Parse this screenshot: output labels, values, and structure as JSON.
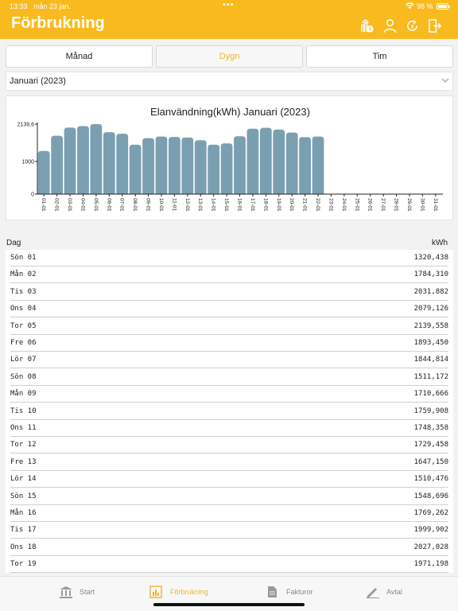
{
  "status_bar": {
    "time": "13:33",
    "date": "mån 23 jan.",
    "dots": "•••",
    "battery": "98 %",
    "battery_level": 0.98
  },
  "header": {
    "title": "Förbrukning",
    "icons": [
      "upload-document-icon",
      "user-icon",
      "refresh-icon",
      "logout-icon"
    ]
  },
  "tabs": [
    {
      "label": "Månad",
      "active": false
    },
    {
      "label": "Dygn",
      "active": true
    },
    {
      "label": "Tim",
      "active": false
    }
  ],
  "month_select": {
    "value": "Januari (2023)"
  },
  "chart_data": {
    "type": "bar",
    "title": "Elanvändning(kWh) Januari (2023)",
    "categories": [
      "01-01",
      "02-01",
      "03-01",
      "04-01",
      "05-01",
      "06-01",
      "07-01",
      "08-01",
      "09-01",
      "10-01",
      "11-01",
      "12-01",
      "13-01",
      "14-01",
      "15-01",
      "16-01",
      "17-01",
      "18-01",
      "19-01",
      "20-01",
      "21-01",
      "22-01",
      "23-01",
      "24-01",
      "25-01",
      "26-01",
      "27-01",
      "28-01",
      "29-01",
      "30-01",
      "31-01"
    ],
    "values": [
      1320.438,
      1784.31,
      2031.882,
      2079.126,
      2139.558,
      1893.45,
      1844.814,
      1511.172,
      1710.666,
      1759.908,
      1748.358,
      1729.458,
      1647.15,
      1510.476,
      1548.696,
      1769.262,
      1999.902,
      2027.028,
      1971.198,
      1880,
      1740,
      1760,
      0,
      0,
      0,
      0,
      0,
      0,
      0,
      0,
      0
    ],
    "ytick_labels": [
      "0",
      "1000",
      "2139,6"
    ],
    "yticks": [
      0,
      1000,
      2139.6
    ],
    "ylim": [
      0,
      2139.6
    ],
    "bar_color": "#7a9fb1",
    "grid": false
  },
  "table": {
    "col_day": "Dag",
    "col_kwh": "kWh",
    "rows": [
      {
        "day": "Sön 01",
        "kwh": "1320,438"
      },
      {
        "day": "Mån 02",
        "kwh": "1784,310"
      },
      {
        "day": "Tis 03",
        "kwh": "2031,882"
      },
      {
        "day": "Ons 04",
        "kwh": "2079,126"
      },
      {
        "day": "Tor 05",
        "kwh": "2139,558"
      },
      {
        "day": "Fre 06",
        "kwh": "1893,450"
      },
      {
        "day": "Lör 07",
        "kwh": "1844,814"
      },
      {
        "day": "Sön 08",
        "kwh": "1511,172"
      },
      {
        "day": "Mån 09",
        "kwh": "1710,666"
      },
      {
        "day": "Tis 10",
        "kwh": "1759,908"
      },
      {
        "day": "Ons 11",
        "kwh": "1748,358"
      },
      {
        "day": "Tor 12",
        "kwh": "1729,458"
      },
      {
        "day": "Fre 13",
        "kwh": "1647,150"
      },
      {
        "day": "Lör 14",
        "kwh": "1510,476"
      },
      {
        "day": "Sön 15",
        "kwh": "1548,696"
      },
      {
        "day": "Mån 16",
        "kwh": "1769,262"
      },
      {
        "day": "Tis 17",
        "kwh": "1999,902"
      },
      {
        "day": "Ons 18",
        "kwh": "2027,028"
      },
      {
        "day": "Tor 19",
        "kwh": "1971,198"
      }
    ]
  },
  "tabbar": [
    {
      "label": "Start",
      "icon": "bank-icon",
      "active": false
    },
    {
      "label": "Förbrukning",
      "icon": "chart-icon",
      "active": true
    },
    {
      "label": "Fakturor",
      "icon": "document-icon",
      "active": false
    },
    {
      "label": "Avtal",
      "icon": "pen-icon",
      "active": false
    }
  ],
  "colors": {
    "accent": "#f9ba1f",
    "active_text": "#f0b429",
    "bar": "#7a9fb1"
  }
}
